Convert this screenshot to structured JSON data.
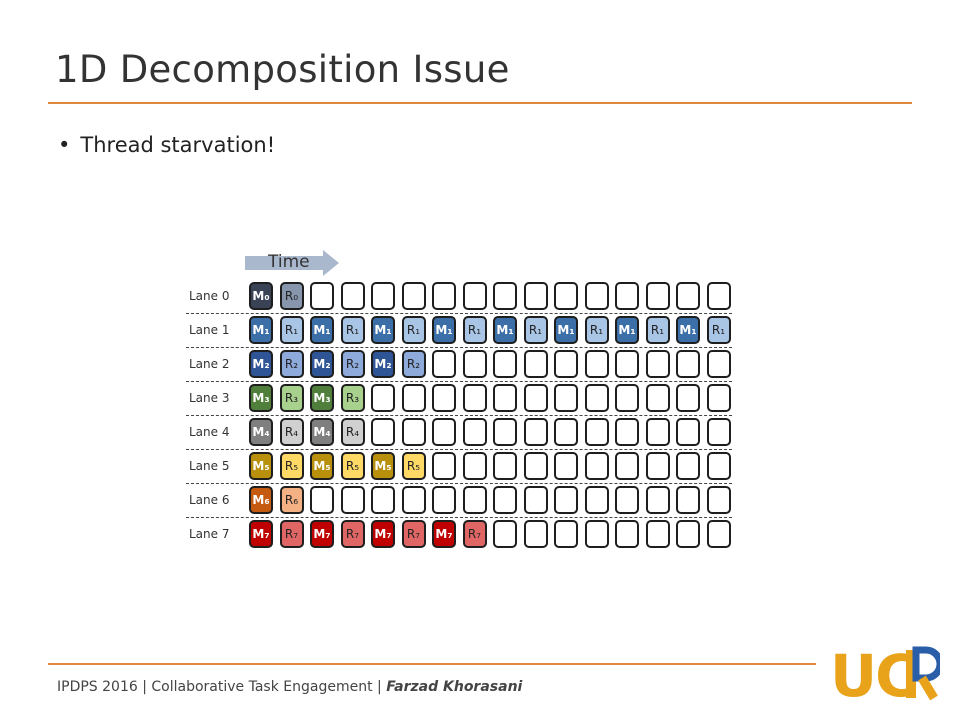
{
  "slide": {
    "title": "1D Decomposition Issue",
    "bullet": "Thread starvation!"
  },
  "diagram": {
    "time_label": "Time",
    "columns": 16,
    "lanes": [
      {
        "label": "Lane 0",
        "m": "M₀",
        "r": "R₀",
        "m_color": "#3a4356",
        "r_color": "#8896ad",
        "m_text": "#ffffff",
        "r_text": "#222222",
        "filled": 2
      },
      {
        "label": "Lane 1",
        "m": "M₁",
        "r": "R₁",
        "m_color": "#3c6fa8",
        "r_color": "#a9c5e6",
        "m_text": "#ffffff",
        "r_text": "#222222",
        "filled": 16
      },
      {
        "label": "Lane 2",
        "m": "M₂",
        "r": "R₂",
        "m_color": "#2f5597",
        "r_color": "#8eaadb",
        "m_text": "#ffffff",
        "r_text": "#222222",
        "filled": 6
      },
      {
        "label": "Lane 3",
        "m": "M₃",
        "r": "R₃",
        "m_color": "#4f7f3a",
        "r_color": "#a9d18e",
        "m_text": "#ffffff",
        "r_text": "#222222",
        "filled": 4
      },
      {
        "label": "Lane 4",
        "m": "M₄",
        "r": "R₄",
        "m_color": "#7f7f7f",
        "r_color": "#d0d0d0",
        "m_text": "#ffffff",
        "r_text": "#222222",
        "filled": 4
      },
      {
        "label": "Lane 5",
        "m": "M₅",
        "r": "R₅",
        "m_color": "#b8900c",
        "r_color": "#ffd966",
        "m_text": "#ffffff",
        "r_text": "#222222",
        "filled": 6
      },
      {
        "label": "Lane 6",
        "m": "M₆",
        "r": "R₆",
        "m_color": "#c55a11",
        "r_color": "#f4b183",
        "m_text": "#ffffff",
        "r_text": "#222222",
        "filled": 2
      },
      {
        "label": "Lane 7",
        "m": "M₇",
        "r": "R₇",
        "m_color": "#c00000",
        "r_color": "#e06666",
        "m_text": "#ffffff",
        "r_text": "#222222",
        "filled": 8
      }
    ]
  },
  "footer": {
    "conference": "IPDPS 2016",
    "separator": "|",
    "talk": "Collaborative Task Engagement",
    "author": "Farzad Khorasani",
    "logo_text": "UCR"
  },
  "colors": {
    "accent": "#e0893a",
    "logo_gold": "#e8a31a",
    "logo_blue": "#2a5ea8",
    "arrow": "#a9b8cc"
  }
}
